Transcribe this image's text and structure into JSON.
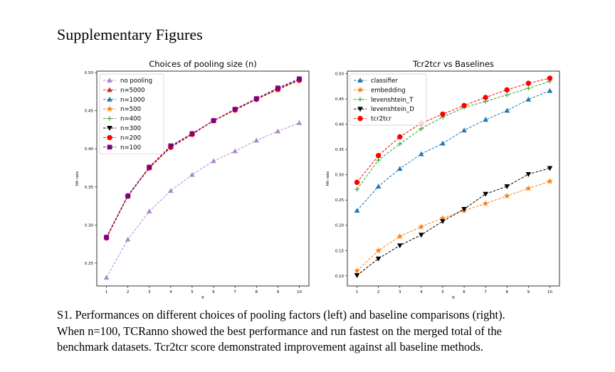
{
  "page": {
    "heading": "Supplementary Figures",
    "caption_lines": [
      "S1. Performances on different choices of pooling factors (left) and baseline comparisons (right).",
      "When n=100, TCRanno showed the best performance and run fastest on the merged total of the",
      "benchmark datasets. Tcr2tcr score demonstrated improvement against all baseline methods."
    ]
  },
  "chart_data": [
    {
      "type": "line",
      "title": "Choices of pooling size (n)",
      "xlabel": "K",
      "ylabel": "Hit rate",
      "x": [
        1,
        2,
        3,
        4,
        5,
        6,
        7,
        8,
        9,
        10
      ],
      "xlim": [
        0.55,
        10.45
      ],
      "ylim": [
        0.22,
        0.502
      ],
      "yticks": [
        0.25,
        0.3,
        0.35,
        0.4,
        0.45,
        0.5
      ],
      "ytick_labels": [
        "0.25",
        "0.30",
        "0.35",
        "0.40",
        "0.45",
        "0.50"
      ],
      "legend_position": "top-left",
      "grid": false,
      "series": [
        {
          "name": "no pooling",
          "color": "#9467bd",
          "marker": "triangle-up",
          "dashed": true,
          "muted": true,
          "values": [
            0.231,
            0.281,
            0.318,
            0.345,
            0.366,
            0.384,
            0.397,
            0.411,
            0.423,
            0.434
          ]
        },
        {
          "name": "n=5000",
          "color": "#d62728",
          "marker": "triangle-up",
          "dashed": true,
          "values": [
            0.284,
            0.339,
            0.376,
            0.403,
            0.42,
            0.437,
            0.452,
            0.466,
            0.479,
            0.491
          ]
        },
        {
          "name": "n=1000",
          "color": "#1f77b4",
          "marker": "triangle-up",
          "dashed": true,
          "values": [
            0.284,
            0.339,
            0.376,
            0.403,
            0.42,
            0.437,
            0.452,
            0.466,
            0.479,
            0.491
          ]
        },
        {
          "name": "n=500",
          "color": "#ff7f0e",
          "marker": "star",
          "dashed": true,
          "values": [
            0.283,
            0.338,
            0.375,
            0.402,
            0.419,
            0.437,
            0.451,
            0.465,
            0.478,
            0.49
          ]
        },
        {
          "name": "n=400",
          "color": "#2ca02c",
          "marker": "plus",
          "dashed": true,
          "values": [
            0.283,
            0.338,
            0.375,
            0.402,
            0.419,
            0.437,
            0.451,
            0.465,
            0.478,
            0.49
          ]
        },
        {
          "name": "n=300",
          "color": "#000000",
          "marker": "triangle-down",
          "dashed": true,
          "values": [
            0.283,
            0.338,
            0.375,
            0.402,
            0.419,
            0.437,
            0.451,
            0.465,
            0.478,
            0.49
          ]
        },
        {
          "name": "n=200",
          "color": "#ff0000",
          "marker": "circle",
          "dashed": true,
          "values": [
            0.283,
            0.338,
            0.375,
            0.402,
            0.419,
            0.437,
            0.451,
            0.465,
            0.478,
            0.49
          ]
        },
        {
          "name": "n=100",
          "color": "#800080",
          "marker": "square",
          "dashed": true,
          "values": [
            0.284,
            0.338,
            0.376,
            0.404,
            0.42,
            0.437,
            0.452,
            0.466,
            0.48,
            0.492
          ]
        }
      ]
    },
    {
      "type": "line",
      "title": "Tcr2tcr vs Baselines",
      "xlabel": "K",
      "ylabel": "Hit rate",
      "x": [
        1,
        2,
        3,
        4,
        5,
        6,
        7,
        8,
        9,
        10
      ],
      "xlim": [
        0.55,
        10.45
      ],
      "ylim": [
        0.08,
        0.505
      ],
      "yticks": [
        0.1,
        0.15,
        0.2,
        0.25,
        0.3,
        0.35,
        0.4,
        0.45,
        0.5
      ],
      "ytick_labels": [
        "0.10",
        "0.15",
        "0.20",
        "0.25",
        "0.30",
        "0.35",
        "0.40",
        "0.45",
        "0.50"
      ],
      "legend_position": "top-left",
      "grid": false,
      "series": [
        {
          "name": "classifier",
          "color": "#1f77b4",
          "marker": "triangle-up",
          "dashed": true,
          "values": [
            0.229,
            0.277,
            0.312,
            0.341,
            0.362,
            0.388,
            0.409,
            0.427,
            0.449,
            0.466
          ]
        },
        {
          "name": "embedding",
          "color": "#ff7f0e",
          "marker": "star",
          "dashed": true,
          "values": [
            0.11,
            0.15,
            0.178,
            0.197,
            0.214,
            0.229,
            0.243,
            0.258,
            0.273,
            0.287
          ]
        },
        {
          "name": "levenshtein_T",
          "color": "#2ca02c",
          "marker": "plus",
          "dashed": true,
          "values": [
            0.271,
            0.329,
            0.361,
            0.391,
            0.414,
            0.433,
            0.445,
            0.458,
            0.471,
            0.485
          ]
        },
        {
          "name": "levenshtein_D",
          "color": "#000000",
          "marker": "triangle-down",
          "dashed": true,
          "values": [
            0.101,
            0.134,
            0.16,
            0.181,
            0.208,
            0.232,
            0.262,
            0.277,
            0.301,
            0.313
          ]
        },
        {
          "name": "tcr2tcr",
          "color": "#ff0000",
          "marker": "circle",
          "dashed": true,
          "values": [
            0.285,
            0.338,
            0.375,
            0.402,
            0.42,
            0.437,
            0.453,
            0.468,
            0.481,
            0.491
          ]
        }
      ]
    }
  ]
}
